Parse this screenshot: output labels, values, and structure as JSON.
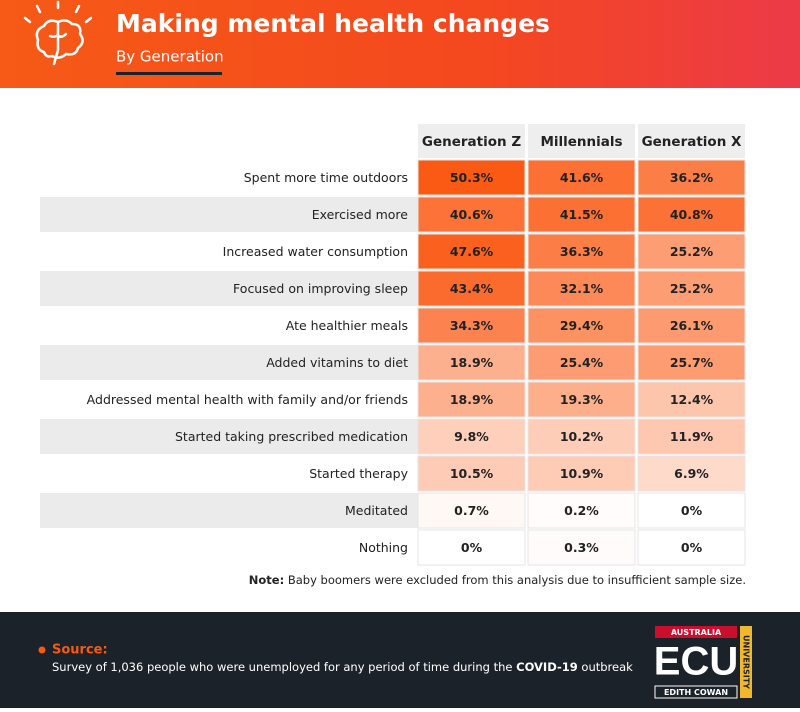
{
  "chart_data": {
    "type": "heatmap",
    "title": "Making mental health changes",
    "subtitle": "By Generation",
    "categories": [
      "Spent more time outdoors",
      "Exercised more",
      "Increased water consumption",
      "Focused on improving sleep",
      "Ate healthier meals",
      "Added vitamins to diet",
      "Addressed mental health with family and/or friends",
      "Started taking prescribed medication",
      "Started therapy",
      "Meditated",
      "Nothing"
    ],
    "series": [
      {
        "name": "Generation Z",
        "values": [
          50.3,
          40.6,
          47.6,
          43.4,
          34.3,
          18.9,
          18.9,
          9.8,
          10.5,
          0.7,
          0
        ],
        "value_labels": [
          "50.3%",
          "40.6%",
          "47.6%",
          "43.4%",
          "34.3%",
          "18.9%",
          "18.9%",
          "9.8%",
          "10.5%",
          "0.7%",
          "0%"
        ]
      },
      {
        "name": "Millennials",
        "values": [
          41.6,
          41.5,
          36.3,
          32.1,
          29.4,
          25.4,
          19.3,
          10.2,
          10.9,
          0.2,
          0.3
        ],
        "value_labels": [
          "41.6%",
          "41.5%",
          "36.3%",
          "32.1%",
          "29.4%",
          "25.4%",
          "19.3%",
          "10.2%",
          "10.9%",
          "0.2%",
          "0.3%"
        ]
      },
      {
        "name": "Generation X",
        "values": [
          36.2,
          40.8,
          25.2,
          25.2,
          26.1,
          25.7,
          12.4,
          11.9,
          6.9,
          0,
          0
        ],
        "value_labels": [
          "36.2%",
          "40.8%",
          "25.2%",
          "25.2%",
          "26.1%",
          "25.7%",
          "12.4%",
          "11.9%",
          "6.9%",
          "0%",
          "0%"
        ]
      }
    ],
    "color": "#fb5a14",
    "note_label": "Note:",
    "note": "Baby boomers were excluded from this analysis due to insufficient sample size.",
    "source_label": "Source:",
    "source_text": "Survey of 1,036 people who were unemployed for any period of time during the",
    "source_bold": "COVID-19",
    "source_end": "outbreak",
    "logo": {
      "top": "AUSTRALIA",
      "main": "ECU",
      "bottom": "EDITH COWAN",
      "side": "UNIVERSITY"
    }
  }
}
